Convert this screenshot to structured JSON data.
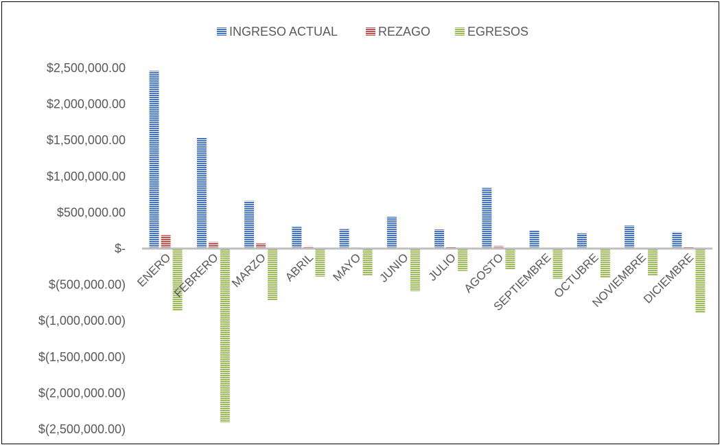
{
  "chart_data": {
    "type": "bar",
    "title": "",
    "xlabel": "",
    "ylabel": "",
    "categories": [
      "ENERO",
      "FEBRERO",
      "MARZO",
      "ABRIL",
      "MAYO",
      "JUNIO",
      "JULIO",
      "AGOSTO",
      "SEPTIEMBRE",
      "OCTUBRE",
      "NOVIEMBRE",
      "DICIEMBRE"
    ],
    "series": [
      {
        "name": "INGRESO ACTUAL",
        "color": "#4472C4",
        "values": [
          2460000,
          1530000,
          660000,
          300000,
          270000,
          440000,
          265000,
          840000,
          250000,
          210000,
          320000,
          230000
        ]
      },
      {
        "name": "REZAGO",
        "color": "#C0504D",
        "values": [
          185000,
          90000,
          70000,
          30000,
          15000,
          0,
          20000,
          35000,
          8000,
          0,
          0,
          20000
        ]
      },
      {
        "name": "EGRESOS",
        "color": "#9BBB59",
        "values": [
          -860000,
          -2410000,
          -720000,
          -390000,
          -370000,
          -590000,
          -310000,
          -290000,
          -420000,
          -400000,
          -380000,
          -890000
        ]
      }
    ],
    "ylim": [
      -2500000,
      2500000
    ],
    "yticks": [
      2500000,
      2000000,
      1500000,
      1000000,
      500000,
      0,
      -500000,
      -1000000,
      -1500000,
      -2000000,
      -2500000
    ],
    "ytick_labels": [
      "$2,500,000.00",
      "$2,000,000.00",
      "$1,500,000.00",
      "$1,000,000.00",
      "$500,000.00",
      "$-",
      "$(500,000.00)",
      "$(1,000,000.00)",
      "$(1,500,000.00)",
      "$(2,000,000.00)",
      "$(2,500,000.00)"
    ],
    "grid": false,
    "legend_position": "top",
    "pattern": "horizontal-stripes"
  }
}
